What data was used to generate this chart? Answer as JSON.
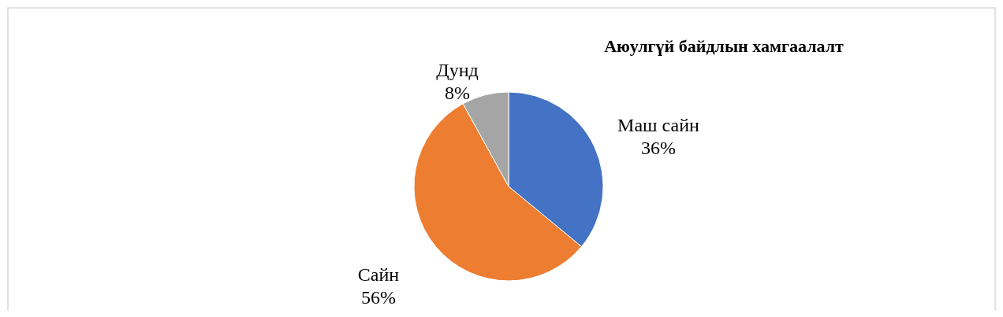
{
  "chart_data": {
    "type": "pie",
    "title": "Аюулгүй байдлын хамгаалалт",
    "categories": [
      "Маш сайн",
      "Сайн",
      "Дунд"
    ],
    "values": [
      36,
      56,
      8
    ],
    "colors": [
      "#4472c4",
      "#ed7d31",
      "#a5a5a5"
    ],
    "value_labels": [
      "36%",
      "56%",
      "8%"
    ]
  }
}
